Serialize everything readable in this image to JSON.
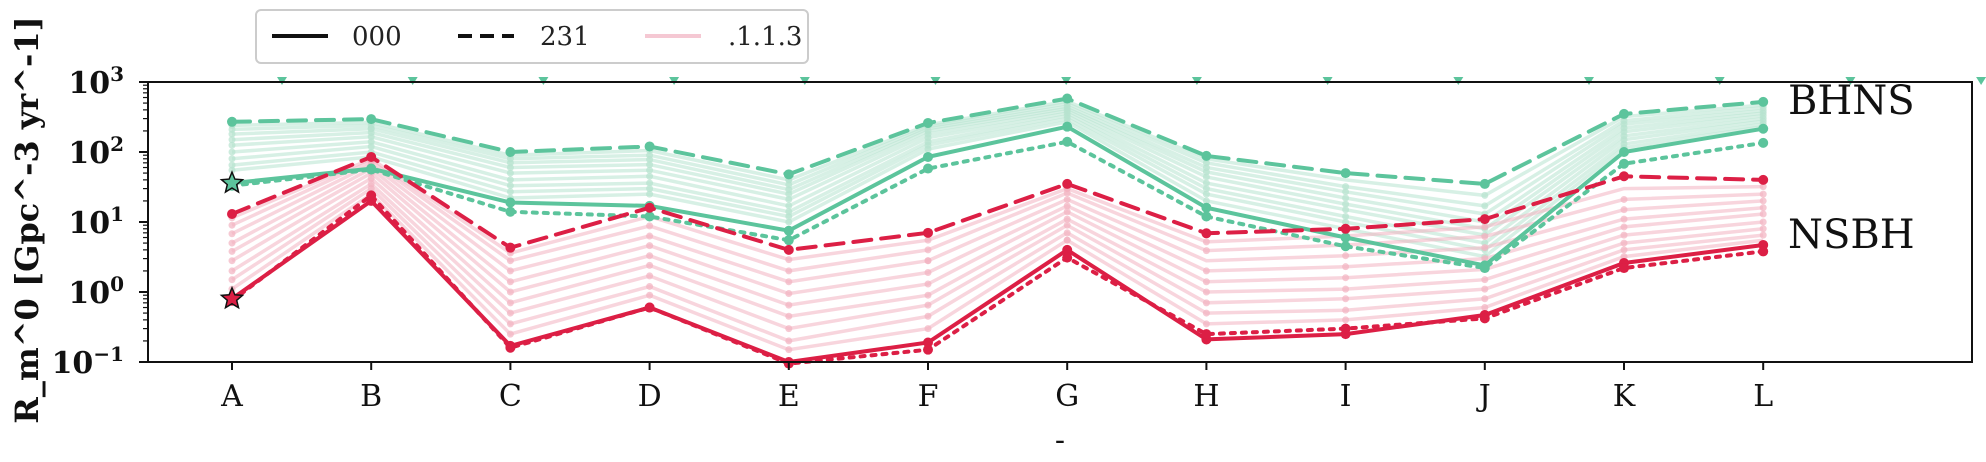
{
  "chart_data": {
    "type": "line",
    "title": "",
    "xlabel": "-",
    "ylabel": "R_m^0 [Gpc^-3 yr^-1]",
    "yscale": "log",
    "ylim": [
      0.1,
      1000
    ],
    "yticks": [
      {
        "value": 0.1,
        "base": "10",
        "exp": "−1"
      },
      {
        "value": 1,
        "base": "10",
        "exp": "0"
      },
      {
        "value": 10,
        "base": "10",
        "exp": "1"
      },
      {
        "value": 100,
        "base": "10",
        "exp": "2"
      },
      {
        "value": 1000,
        "base": "10",
        "exp": "3"
      }
    ],
    "categories": [
      "A",
      "B",
      "C",
      "D",
      "E",
      "F",
      "G",
      "H",
      "I",
      "J",
      "K",
      "L"
    ],
    "legend": {
      "placement": "top-left, above axes",
      "entries": [
        {
          "label": "000",
          "style": "solid"
        },
        {
          "label": "231",
          "style": "dashed"
        },
        {
          "label": ".1.1.3",
          "style": "faint"
        }
      ]
    },
    "group_labels": [
      "BHNS",
      "NSBH"
    ],
    "colors": {
      "BHNS": "#5cc49c",
      "NSBH": "#dc1f45",
      "faint_nsbh": "#f2b2c1",
      "faint_bhns": "#b6e3cf"
    },
    "series": [
      {
        "group": "BHNS",
        "style": "solid",
        "values": [
          36,
          58,
          19,
          17,
          7.5,
          85,
          230,
          16,
          6,
          2.4,
          100,
          215
        ]
      },
      {
        "group": "BHNS",
        "style": "dashed",
        "values": [
          270,
          295,
          100,
          120,
          48,
          260,
          580,
          88,
          50,
          35,
          350,
          520
        ]
      },
      {
        "group": "BHNS",
        "style": "dotted",
        "values": [
          33,
          56,
          14,
          12,
          5.5,
          58,
          140,
          12,
          4.5,
          2.2,
          68,
          135
        ]
      },
      {
        "group": "NSBH",
        "style": "solid",
        "values": [
          0.8,
          20,
          0.17,
          0.6,
          0.1,
          0.19,
          4,
          0.21,
          0.25,
          0.47,
          2.6,
          4.7
        ]
      },
      {
        "group": "NSBH",
        "style": "dashed",
        "values": [
          13,
          85,
          4.3,
          16,
          4,
          7,
          35,
          6.9,
          8,
          11,
          45,
          40
        ]
      },
      {
        "group": "NSBH",
        "style": "dotted",
        "values": [
          0.75,
          24,
          0.16,
          0.6,
          0.095,
          0.15,
          3.1,
          0.25,
          0.3,
          0.42,
          2.2,
          3.8
        ]
      }
    ],
    "faint_series": {
      "BHNS": [
        [
          55,
          85,
          22,
          25,
          10,
          110,
          270,
          20,
          8,
          3.2,
          115,
          230
        ],
        [
          65,
          100,
          27,
          30,
          12,
          125,
          300,
          25,
          10,
          4,
          130,
          250
        ],
        [
          80,
          120,
          33,
          36,
          14,
          140,
          330,
          30,
          12,
          5,
          150,
          275
        ],
        [
          100,
          140,
          40,
          45,
          17,
          160,
          360,
          36,
          15,
          6.5,
          170,
          300
        ],
        [
          125,
          165,
          50,
          55,
          21,
          180,
          390,
          44,
          18,
          8,
          195,
          330
        ],
        [
          150,
          190,
          60,
          66,
          25,
          200,
          420,
          52,
          22,
          10,
          220,
          360
        ],
        [
          180,
          215,
          70,
          78,
          29,
          215,
          450,
          60,
          27,
          13,
          250,
          390
        ],
        [
          210,
          240,
          80,
          90,
          34,
          230,
          490,
          70,
          32,
          17,
          280,
          430
        ],
        [
          240,
          265,
          90,
          105,
          40,
          245,
          530,
          80,
          40,
          24,
          320,
          470
        ]
      ],
      "NSBH": [
        [
          1.1,
          25,
          0.25,
          0.9,
          0.15,
          0.3,
          5.5,
          0.35,
          0.4,
          0.6,
          3.2,
          5.5
        ],
        [
          1.5,
          30,
          0.35,
          1.2,
          0.2,
          0.45,
          7,
          0.5,
          0.55,
          0.8,
          4,
          6.5
        ],
        [
          2,
          35,
          0.5,
          1.7,
          0.3,
          0.65,
          9,
          0.7,
          0.8,
          1.1,
          5,
          8
        ],
        [
          2.8,
          42,
          0.7,
          2.4,
          0.45,
          0.9,
          11,
          1,
          1.1,
          1.5,
          6.5,
          10
        ],
        [
          3.8,
          50,
          1,
          3.3,
          0.65,
          1.3,
          14,
          1.4,
          1.6,
          2.1,
          8.5,
          13
        ],
        [
          5,
          58,
          1.4,
          4.6,
          0.95,
          1.9,
          17,
          2,
          2.3,
          3,
          11,
          16
        ],
        [
          6.8,
          66,
          2,
          6.3,
          1.4,
          2.8,
          21,
          2.8,
          3.3,
          4.3,
          15,
          20
        ],
        [
          9,
          74,
          2.8,
          8.8,
          2,
          4,
          26,
          3.9,
          4.7,
          6.2,
          21,
          25
        ],
        [
          11.5,
          80,
          3.6,
          12,
          2.9,
          5.5,
          30,
          5.2,
          6.3,
          8.5,
          30,
          32
        ]
      ]
    },
    "top_markers": {
      "note": "small green triangle markers along top of axes",
      "count": 14
    },
    "star_markers": [
      {
        "group": "BHNS",
        "category": "A",
        "value": 36
      },
      {
        "group": "NSBH",
        "category": "A",
        "value": 0.8
      }
    ]
  }
}
